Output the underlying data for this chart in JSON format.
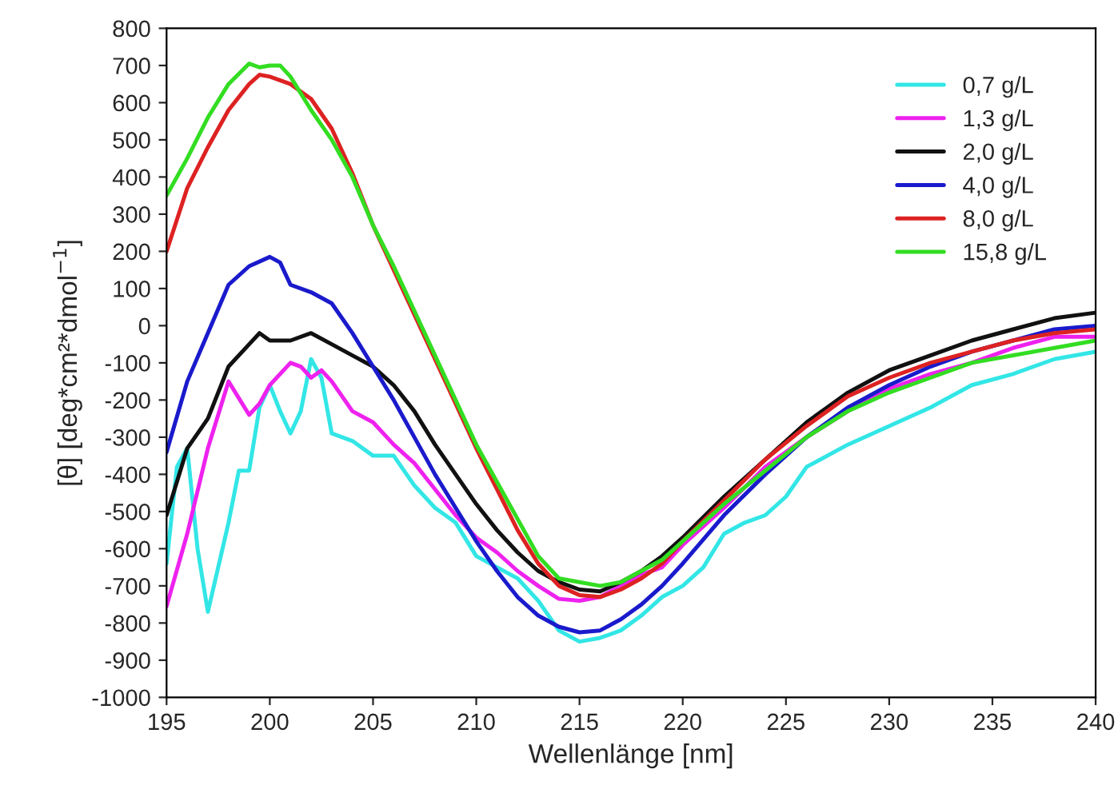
{
  "chart_data": {
    "type": "line",
    "xlabel": "Wellenlänge [nm]",
    "ylabel": "[θ] [deg*cm²*dmol$^{−1}$]",
    "xlim": [
      195,
      240
    ],
    "xticks": [
      195,
      200,
      205,
      210,
      215,
      220,
      225,
      230,
      235,
      240
    ],
    "ylim": [
      -1000,
      800
    ],
    "yticks": [
      -1000,
      -900,
      -800,
      -700,
      -600,
      -500,
      -400,
      -300,
      -200,
      -100,
      0,
      100,
      200,
      300,
      400,
      500,
      600,
      700,
      800
    ],
    "grid": false,
    "legend": "top right",
    "marker": "none",
    "line_style": "solid",
    "series": [
      {
        "name": "0,7 g/L",
        "color": "#33e6e6",
        "x": [
          195,
          195.5,
          196,
          196.5,
          197,
          198,
          198.5,
          199,
          199.5,
          200,
          200.5,
          201,
          201.5,
          202,
          202.5,
          203,
          204,
          205,
          206,
          207,
          208,
          209,
          210,
          211,
          212,
          213,
          214,
          215,
          216,
          217,
          218,
          219,
          220,
          221,
          222,
          223,
          224,
          225,
          226,
          228,
          230,
          232,
          234,
          236,
          238,
          240
        ],
        "values": [
          -640,
          -380,
          -330,
          -600,
          -770,
          -530,
          -390,
          -390,
          -220,
          -160,
          -230,
          -290,
          -230,
          -90,
          -140,
          -290,
          -310,
          -350,
          -350,
          -430,
          -490,
          -530,
          -620,
          -650,
          -680,
          -740,
          -820,
          -850,
          -840,
          -820,
          -780,
          -730,
          -700,
          -650,
          -560,
          -530,
          -510,
          -460,
          -380,
          -320,
          -270,
          -220,
          -160,
          -130,
          -90,
          -70
        ]
      },
      {
        "name": "1,3 g/L",
        "color": "#ee22ee",
        "x": [
          195,
          196,
          197,
          198,
          199,
          199.5,
          200,
          201,
          201.5,
          202,
          202.5,
          203,
          204,
          205,
          206,
          207,
          208,
          209,
          210,
          211,
          212,
          213,
          214,
          215,
          216,
          217,
          218,
          219,
          220,
          222,
          224,
          226,
          228,
          230,
          232,
          234,
          236,
          238,
          240
        ],
        "values": [
          -755,
          -560,
          -330,
          -150,
          -240,
          -210,
          -160,
          -100,
          -110,
          -140,
          -120,
          -150,
          -230,
          -260,
          -320,
          -370,
          -440,
          -510,
          -570,
          -610,
          -660,
          -700,
          -735,
          -740,
          -730,
          -700,
          -670,
          -650,
          -590,
          -490,
          -380,
          -300,
          -230,
          -170,
          -130,
          -100,
          -60,
          -30,
          -30
        ]
      },
      {
        "name": "2,0 g/L",
        "color": "#111111",
        "x": [
          195,
          195.5,
          196,
          197,
          198,
          199,
          199.5,
          200,
          201,
          202,
          203,
          204,
          205,
          206,
          207,
          208,
          209,
          210,
          211,
          212,
          213,
          214,
          215,
          216,
          217,
          218,
          219,
          220,
          222,
          224,
          226,
          228,
          230,
          232,
          234,
          236,
          238,
          240
        ],
        "values": [
          -510,
          -420,
          -330,
          -250,
          -110,
          -50,
          -20,
          -40,
          -40,
          -20,
          -50,
          -80,
          -110,
          -160,
          -230,
          -320,
          -400,
          -480,
          -550,
          -610,
          -660,
          -690,
          -710,
          -715,
          -690,
          -660,
          -620,
          -570,
          -460,
          -360,
          -260,
          -180,
          -120,
          -80,
          -40,
          -10,
          20,
          35
        ]
      },
      {
        "name": "4,0 g/L",
        "color": "#1a1acc",
        "x": [
          195,
          196,
          197,
          198,
          199,
          200,
          200.5,
          201,
          202,
          203,
          204,
          205,
          206,
          207,
          208,
          209,
          210,
          211,
          212,
          213,
          214,
          215,
          216,
          217,
          218,
          219,
          220,
          222,
          224,
          226,
          228,
          230,
          232,
          234,
          236,
          238,
          240
        ],
        "values": [
          -340,
          -150,
          -20,
          110,
          160,
          185,
          170,
          110,
          90,
          60,
          -20,
          -110,
          -200,
          -300,
          -400,
          -490,
          -580,
          -660,
          -730,
          -780,
          -810,
          -825,
          -820,
          -790,
          -750,
          -700,
          -640,
          -510,
          -400,
          -300,
          -220,
          -160,
          -110,
          -70,
          -40,
          -10,
          0
        ]
      },
      {
        "name": "8,0 g/L",
        "color": "#dd2222",
        "x": [
          195,
          196,
          197,
          198,
          199,
          199.5,
          200,
          201,
          202,
          203,
          204,
          205,
          206,
          207,
          208,
          209,
          210,
          211,
          212,
          213,
          214,
          215,
          216,
          217,
          218,
          219,
          220,
          222,
          224,
          226,
          228,
          230,
          232,
          234,
          236,
          238,
          240
        ],
        "values": [
          200,
          370,
          480,
          580,
          650,
          675,
          670,
          650,
          610,
          530,
          410,
          270,
          150,
          30,
          -90,
          -210,
          -330,
          -440,
          -550,
          -640,
          -700,
          -725,
          -730,
          -710,
          -680,
          -640,
          -580,
          -470,
          -360,
          -270,
          -190,
          -140,
          -100,
          -70,
          -40,
          -20,
          -10
        ]
      },
      {
        "name": "15,8 g/L",
        "color": "#33dd22",
        "x": [
          195,
          196,
          197,
          198,
          199,
          199.5,
          200,
          200.5,
          201,
          202,
          203,
          204,
          205,
          206,
          207,
          208,
          209,
          210,
          211,
          212,
          213,
          214,
          215,
          216,
          217,
          218,
          219,
          220,
          222,
          224,
          226,
          228,
          230,
          232,
          234,
          236,
          238,
          240
        ],
        "values": [
          350,
          450,
          560,
          650,
          705,
          695,
          700,
          700,
          670,
          580,
          500,
          400,
          270,
          160,
          40,
          -80,
          -200,
          -320,
          -420,
          -520,
          -620,
          -680,
          -690,
          -700,
          -690,
          -660,
          -630,
          -580,
          -480,
          -390,
          -300,
          -230,
          -180,
          -140,
          -100,
          -80,
          -60,
          -40
        ]
      }
    ]
  }
}
